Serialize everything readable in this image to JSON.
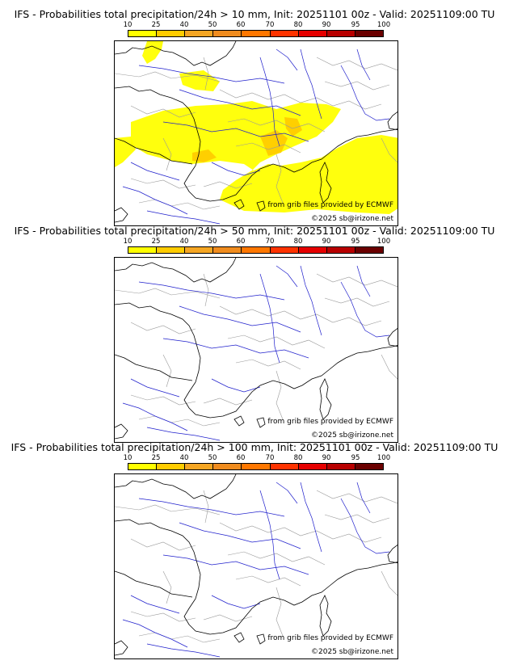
{
  "panels": [
    {
      "title": "IFS - Probabilities total precipitation/24h > 10 mm, Init: 20251101 00z - Valid: 20251109:00 TU",
      "has_precip": true
    },
    {
      "title": "IFS - Probabilities total precipitation/24h > 50 mm, Init: 20251101 00z - Valid: 20251109:00 TU",
      "has_precip": false
    },
    {
      "title": "IFS - Probabilities total precipitation/24h > 100 mm, Init: 20251101 00z - Valid: 20251109:00 TU",
      "has_precip": false
    }
  ],
  "colorbar": {
    "ticks": [
      "10",
      "25",
      "40",
      "50",
      "60",
      "70",
      "80",
      "90",
      "95",
      "100"
    ],
    "colors": [
      "#ffff00",
      "#ffcc00",
      "#f5a623",
      "#f08c1e",
      "#ff7700",
      "#ff3300",
      "#e60000",
      "#b80000",
      "#6b0000"
    ]
  },
  "credits": {
    "source": "from grib files provided by ECMWF",
    "copyright": "©2025 sb@irizone.net"
  },
  "colors": {
    "coast": "#000000",
    "rivers": "#1f1fcc",
    "borders": "#999999",
    "precip_low": "#ffff00",
    "precip_mid": "#ffcc00"
  }
}
